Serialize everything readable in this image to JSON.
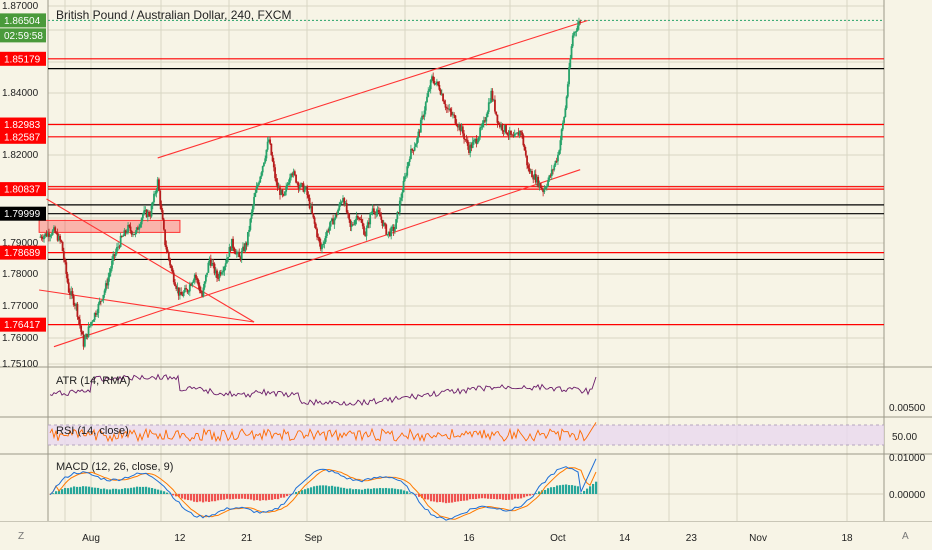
{
  "title": "British Pound / Australian Dollar, 240, FXCM",
  "countdown": "02:59:58",
  "chart_data": {
    "type": "candlestick",
    "title": "British Pound / Australian Dollar, 240, FXCM",
    "symbol": "GBPAUD",
    "timeframe": "240",
    "source": "FXCM",
    "current_price": 1.86504,
    "ylim": [
      1.751,
      1.87
    ],
    "y_ticks": [
      {
        "value": 1.87,
        "label": "1.87000"
      },
      {
        "value": 1.84,
        "label": "1.84000"
      },
      {
        "value": 1.82,
        "label": "1.82000"
      },
      {
        "value": 1.79,
        "label": "1.79000"
      },
      {
        "value": 1.78,
        "label": "1.78000"
      },
      {
        "value": 1.77,
        "label": "1.77000"
      },
      {
        "value": 1.76,
        "label": "1.76000"
      },
      {
        "value": 1.751,
        "label": "1.75100"
      }
    ],
    "price_badges": [
      {
        "label": "1.86504",
        "value": 1.86504,
        "color": "#4a9a3b",
        "kind": "current"
      },
      {
        "label": "1.85179",
        "value": 1.85179,
        "color": "#ff0000"
      },
      {
        "label": "1.82983",
        "value": 1.82983,
        "color": "#ff0000"
      },
      {
        "label": "1.82587",
        "value": 1.82587,
        "color": "#ff0000"
      },
      {
        "label": "1.80837",
        "value": 1.80837,
        "color": "#ff0000"
      },
      {
        "label": "1.79999",
        "value": 1.79999,
        "color": "#000000"
      },
      {
        "label": "1.78689",
        "value": 1.78689,
        "color": "#ff0000"
      },
      {
        "label": "1.76417",
        "value": 1.76417,
        "color": "#ff0000"
      }
    ],
    "horizontal_lines": [
      {
        "value": 1.85179,
        "color": "#ff0000"
      },
      {
        "value": 1.8484,
        "color": "#000000"
      },
      {
        "value": 1.82983,
        "color": "#ff0000"
      },
      {
        "value": 1.82587,
        "color": "#ff0000"
      },
      {
        "value": 1.80837,
        "color": "#ff0000"
      },
      {
        "value": 1.8092,
        "color": "#ff0000"
      },
      {
        "value": 1.803,
        "color": "#000000"
      },
      {
        "value": 1.79999,
        "color": "#000000"
      },
      {
        "value": 1.78689,
        "color": "#ff0000"
      },
      {
        "value": 1.7847,
        "color": "#000000"
      },
      {
        "value": 1.76417,
        "color": "#ff0000"
      }
    ],
    "x_ticks": [
      "Aug",
      "12",
      "21",
      "Sep",
      "16",
      "Oct",
      "14",
      "23",
      "Nov",
      "18"
    ],
    "x_tick_index": [
      0,
      12,
      21,
      30,
      51,
      63,
      72,
      81,
      90,
      102
    ],
    "points_per_tick": 1,
    "candles_per_index": 6,
    "last_index": 72,
    "close_path": [
      [
        -7,
        1.792
      ],
      [
        -5,
        1.794
      ],
      [
        -4,
        1.79
      ],
      [
        -3,
        1.775
      ],
      [
        -2,
        1.77
      ],
      [
        -1,
        1.758
      ],
      [
        0,
        1.765
      ],
      [
        1,
        1.77
      ],
      [
        2,
        1.776
      ],
      [
        3,
        1.785
      ],
      [
        4,
        1.791
      ],
      [
        5,
        1.795
      ],
      [
        6,
        1.793
      ],
      [
        7,
        1.8
      ],
      [
        8,
        1.8
      ],
      [
        9,
        1.811
      ],
      [
        10,
        1.79
      ],
      [
        11,
        1.78
      ],
      [
        12,
        1.773
      ],
      [
        13,
        1.775
      ],
      [
        14,
        1.78
      ],
      [
        15,
        1.773
      ],
      [
        16,
        1.785
      ],
      [
        17,
        1.779
      ],
      [
        18,
        1.783
      ],
      [
        19,
        1.79
      ],
      [
        20,
        1.785
      ],
      [
        21,
        1.79
      ],
      [
        22,
        1.805
      ],
      [
        23,
        1.815
      ],
      [
        24,
        1.825
      ],
      [
        25,
        1.81
      ],
      [
        26,
        1.805
      ],
      [
        27,
        1.815
      ],
      [
        28,
        1.81
      ],
      [
        29,
        1.808
      ],
      [
        30,
        1.798
      ],
      [
        31,
        1.788
      ],
      [
        32,
        1.795
      ],
      [
        33,
        1.799
      ],
      [
        34,
        1.806
      ],
      [
        35,
        1.795
      ],
      [
        36,
        1.8
      ],
      [
        37,
        1.793
      ],
      [
        38,
        1.802
      ],
      [
        39,
        1.799
      ],
      [
        40,
        1.793
      ],
      [
        41,
        1.795
      ],
      [
        42,
        1.808
      ],
      [
        43,
        1.82
      ],
      [
        44,
        1.825
      ],
      [
        45,
        1.835
      ],
      [
        46,
        1.845
      ],
      [
        47,
        1.842
      ],
      [
        48,
        1.835
      ],
      [
        49,
        1.832
      ],
      [
        50,
        1.828
      ],
      [
        51,
        1.822
      ],
      [
        52,
        1.825
      ],
      [
        53,
        1.83
      ],
      [
        54,
        1.84
      ],
      [
        55,
        1.83
      ],
      [
        56,
        1.828
      ],
      [
        57,
        1.825
      ],
      [
        58,
        1.828
      ],
      [
        59,
        1.815
      ],
      [
        60,
        1.812
      ],
      [
        61,
        1.808
      ],
      [
        62,
        1.813
      ],
      [
        63,
        1.82
      ],
      [
        64,
        1.835
      ],
      [
        65,
        1.86
      ],
      [
        66,
        1.865
      ]
    ],
    "drawings": [
      {
        "type": "trendline",
        "color": "#ff3333",
        "from": [
          -5,
          1.757
        ],
        "to": [
          66,
          1.815
        ]
      },
      {
        "type": "trendline",
        "color": "#ff3333",
        "from": [
          9,
          1.819
        ],
        "to": [
          67,
          1.865
        ]
      },
      {
        "type": "trendline",
        "color": "#ff3333",
        "from": [
          -7,
          1.775
        ],
        "to": [
          22,
          1.765
        ]
      },
      {
        "type": "trendline",
        "color": "#ff3333",
        "from": [
          -6,
          1.805
        ],
        "to": [
          22,
          1.765
        ]
      },
      {
        "type": "rectangle",
        "color": "#ff3333",
        "from": [
          -7,
          1.796
        ],
        "to": [
          12,
          1.794
        ]
      }
    ]
  },
  "indicators": [
    {
      "key": "atr",
      "label": "ATR (14, RMA)",
      "scale_label": "0.00500"
    },
    {
      "key": "rsi",
      "label": "RSI (14, close)",
      "scale_label": "50.00"
    },
    {
      "key": "macd",
      "label": "MACD (12, 26, close, 9)",
      "scale_labels": [
        "0.01000",
        "0.00000"
      ]
    }
  ],
  "bottom_bar": {
    "left_icon": "Z",
    "right_icon": "A"
  },
  "colors": {
    "background": "#f7f4e6",
    "grid": "#d9d6c4",
    "up": "#26a269",
    "down": "#b71c1c",
    "line": "#ff0000",
    "atr": "#6a1b6a",
    "rsi": "#ff6a00",
    "rsi_band": "#e8d8ef",
    "macd_line": "#1e6fd6",
    "macd_signal": "#ff7a00",
    "hist_up": "#26a69a",
    "hist_down": "#ef5350"
  }
}
